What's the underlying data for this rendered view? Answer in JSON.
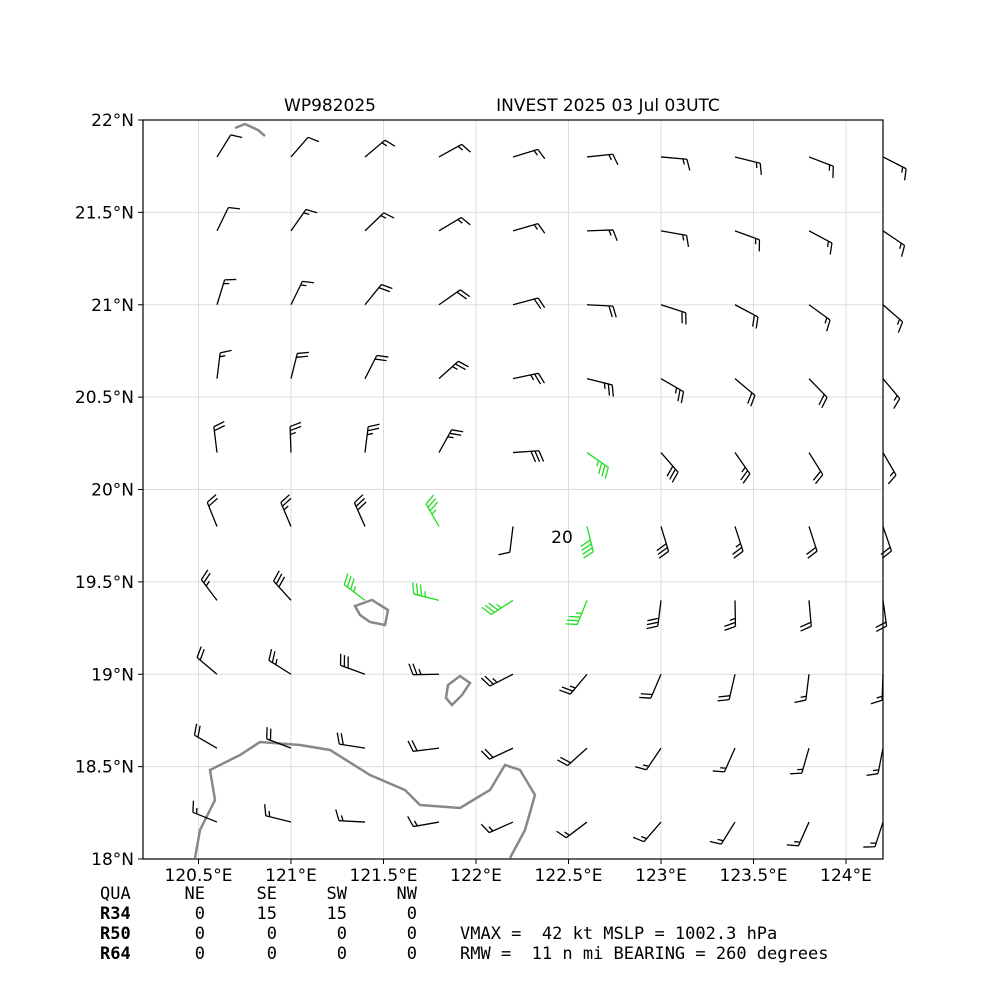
{
  "chart_data": {
    "type": "barbs",
    "title": "WP982025",
    "subtitle": "INVEST 2025 03 Jul 03UTC",
    "annotation": "20",
    "xlim": [
      120.2,
      124.2
    ],
    "ylim": [
      18,
      22
    ],
    "xticks": [
      {
        "value": 120.5,
        "label": "120.5°E"
      },
      {
        "value": 121,
        "label": "121°E"
      },
      {
        "value": 121.5,
        "label": "121.5°E"
      },
      {
        "value": 122,
        "label": "122°E"
      },
      {
        "value": 122.5,
        "label": "122.5°E"
      },
      {
        "value": 123,
        "label": "123°E"
      },
      {
        "value": 123.5,
        "label": "123.5°E"
      },
      {
        "value": 124,
        "label": "124°E"
      }
    ],
    "yticks": [
      {
        "value": 18,
        "label": "18°N"
      },
      {
        "value": 18.5,
        "label": "18.5°N"
      },
      {
        "value": 19,
        "label": "19°N"
      },
      {
        "value": 19.5,
        "label": "19.5°N"
      },
      {
        "value": 20,
        "label": "20°N"
      },
      {
        "value": 20.5,
        "label": "20.5°N"
      },
      {
        "value": 21,
        "label": "21°N"
      },
      {
        "value": 21.5,
        "label": "21.5°N"
      },
      {
        "value": 22,
        "label": "22°N"
      }
    ],
    "grid": true,
    "color": "#000000",
    "color_34": "#22dd22",
    "color_50": "#f0a020",
    "x": [
      120.6,
      121.0,
      121.4,
      121.8,
      122.2,
      122.6,
      123.0,
      123.4,
      123.8,
      124.2
    ],
    "y": [
      18.2,
      18.6,
      19.0,
      19.4,
      19.8,
      20.2,
      20.6,
      21.0,
      21.4,
      21.8
    ],
    "direction": [
      [
        292,
        284,
        273,
        260,
        246,
        233,
        221,
        212,
        204,
        198
      ],
      [
        300,
        291,
        279,
        263,
        245,
        228,
        214,
        204,
        196,
        191
      ],
      [
        310,
        302,
        290,
        269,
        243,
        220,
        203,
        193,
        187,
        182
      ],
      [
        323,
        318,
        307,
        284,
        237,
        202,
        187,
        179,
        175,
        172
      ],
      [
        338,
        337,
        336,
        330,
        187,
        166,
        163,
        162,
        162,
        161
      ],
      [
        353,
        358,
        7,
        29,
        86,
        125,
        139,
        145,
        148,
        150
      ],
      [
        7,
        14,
        27,
        48,
        78,
        104,
        120,
        130,
        136,
        140
      ],
      [
        17,
        26,
        39,
        55,
        75,
        93,
        108,
        118,
        126,
        131
      ],
      [
        26,
        35,
        46,
        59,
        74,
        88,
        100,
        110,
        118,
        124
      ],
      [
        32,
        41,
        50,
        61,
        73,
        84,
        95,
        104,
        111,
        117
      ]
    ],
    "speed": [
      [
        15,
        15,
        15,
        15,
        15,
        15,
        15,
        15,
        15,
        15
      ],
      [
        20,
        20,
        20,
        20,
        20,
        20,
        15,
        15,
        15,
        15
      ],
      [
        20,
        25,
        30,
        25,
        25,
        25,
        20,
        20,
        15,
        15
      ],
      [
        25,
        30,
        35,
        35,
        35,
        35,
        30,
        25,
        20,
        20
      ],
      [
        20,
        25,
        30,
        35,
        10,
        40,
        30,
        25,
        20,
        20
      ],
      [
        20,
        25,
        25,
        25,
        30,
        35,
        30,
        25,
        20,
        15
      ],
      [
        15,
        20,
        20,
        25,
        25,
        25,
        25,
        20,
        20,
        15
      ],
      [
        15,
        15,
        20,
        20,
        20,
        20,
        20,
        20,
        15,
        15
      ],
      [
        10,
        15,
        15,
        15,
        15,
        15,
        15,
        15,
        15,
        15
      ],
      [
        10,
        10,
        15,
        15,
        15,
        15,
        15,
        15,
        15,
        15
      ]
    ]
  },
  "table": {
    "header": [
      "QUA",
      "NE",
      "SE",
      "SW",
      "NW"
    ],
    "rows": [
      [
        "R34",
        0,
        15,
        15,
        0
      ],
      [
        "R50",
        0,
        0,
        0,
        0
      ],
      [
        "R64",
        0,
        0,
        0,
        0
      ]
    ]
  },
  "info": [
    "VMAX =  42 kt MSLP = 1002.3 hPa",
    "RMW =  11 n mi BEARING = 260 degrees"
  ]
}
